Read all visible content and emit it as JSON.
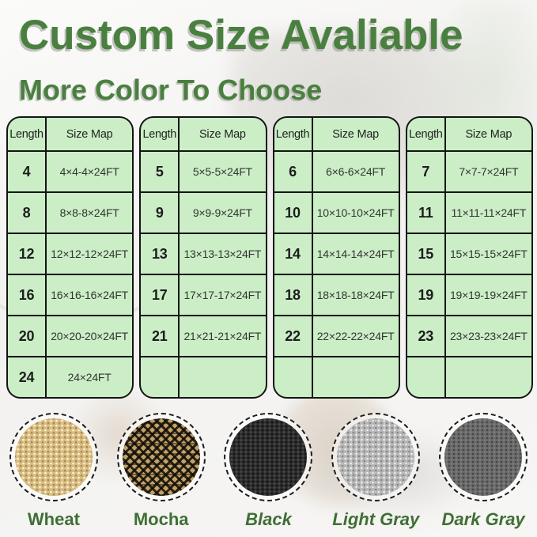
{
  "header": {
    "title": "Custom Size Avaliable",
    "subtitle": "More Color To Choose"
  },
  "colors": {
    "title_green": "#4a803f",
    "label_green": "#3e6f35",
    "table_fill": "#cbeec6",
    "table_border": "#141414"
  },
  "tables": [
    {
      "columns": [
        "Length",
        "Size Map"
      ],
      "rows": [
        [
          "4",
          "4×4-4×24FT"
        ],
        [
          "8",
          "8×8-8×24FT"
        ],
        [
          "12",
          "12×12-12×24FT"
        ],
        [
          "16",
          "16×16-16×24FT"
        ],
        [
          "20",
          "20×20-20×24FT"
        ],
        [
          "24",
          "24×24FT"
        ]
      ]
    },
    {
      "columns": [
        "Length",
        "Size Map"
      ],
      "rows": [
        [
          "5",
          "5×5-5×24FT"
        ],
        [
          "9",
          "9×9-9×24FT"
        ],
        [
          "13",
          "13×13-13×24FT"
        ],
        [
          "17",
          "17×17-17×24FT"
        ],
        [
          "21",
          "21×21-21×24FT"
        ],
        [
          "",
          ""
        ]
      ]
    },
    {
      "columns": [
        "Length",
        "Size Map"
      ],
      "rows": [
        [
          "6",
          "6×6-6×24FT"
        ],
        [
          "10",
          "10×10-10×24FT"
        ],
        [
          "14",
          "14×14-14×24FT"
        ],
        [
          "18",
          "18×18-18×24FT"
        ],
        [
          "22",
          "22×22-22×24FT"
        ],
        [
          "",
          ""
        ]
      ]
    },
    {
      "columns": [
        "Length",
        "Size Map"
      ],
      "rows": [
        [
          "7",
          "7×7-7×24FT"
        ],
        [
          "11",
          "11×11-11×24FT"
        ],
        [
          "15",
          "15×15-15×24FT"
        ],
        [
          "19",
          "19×19-19×24FT"
        ],
        [
          "23",
          "23×23-23×24FT"
        ],
        [
          "",
          ""
        ]
      ]
    }
  ],
  "swatches": [
    {
      "name": "Wheat",
      "italic": false,
      "texture": "wheat",
      "base_color": "#d9bd82"
    },
    {
      "name": "Mocha",
      "italic": false,
      "texture": "mocha",
      "base_color": "#c2a265"
    },
    {
      "name": "Black",
      "italic": true,
      "texture": "black",
      "base_color": "#2e2e2e"
    },
    {
      "name": "Light Gray",
      "italic": true,
      "texture": "lightgray",
      "base_color": "#b5b5b5"
    },
    {
      "name": "Dark Gray",
      "italic": true,
      "texture": "darkgray",
      "base_color": "#696969"
    }
  ]
}
